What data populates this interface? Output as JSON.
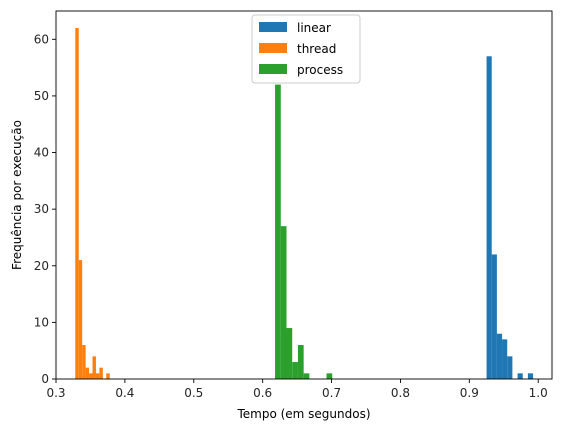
{
  "chart_data": {
    "type": "bar",
    "title": "",
    "xlabel": "Tempo (em segundos)",
    "ylabel": "Frequência por execução",
    "xlim": [
      0.3,
      1.02
    ],
    "ylim": [
      0,
      65
    ],
    "xticks": [
      0.3,
      0.4,
      0.5,
      0.6,
      0.7,
      0.8,
      0.9,
      1.0
    ],
    "xtick_labels": [
      "0.3",
      "0.4",
      "0.5",
      "0.6",
      "0.7",
      "0.8",
      "0.9",
      "1.0"
    ],
    "yticks": [
      0,
      10,
      20,
      30,
      40,
      50,
      60
    ],
    "ytick_labels": [
      "0",
      "10",
      "20",
      "30",
      "40",
      "50",
      "60"
    ],
    "grid": false,
    "legend_position": "top-center",
    "series": [
      {
        "name": "linear",
        "color": "#1f77b4",
        "bin_start": 0.925,
        "bin_width": 0.0075,
        "values": [
          57,
          22,
          8,
          7,
          4,
          0,
          1,
          0,
          1
        ]
      },
      {
        "name": "thread",
        "color": "#ff7f0e",
        "bin_start": 0.328,
        "bin_width": 0.005,
        "values": [
          62,
          21,
          6,
          2,
          1,
          4,
          1,
          2,
          0,
          1
        ]
      },
      {
        "name": "process",
        "color": "#2ca02c",
        "bin_start": 0.618,
        "bin_width": 0.0083,
        "values": [
          52,
          27,
          9,
          3,
          6,
          1,
          0,
          0,
          0,
          1
        ]
      }
    ]
  }
}
